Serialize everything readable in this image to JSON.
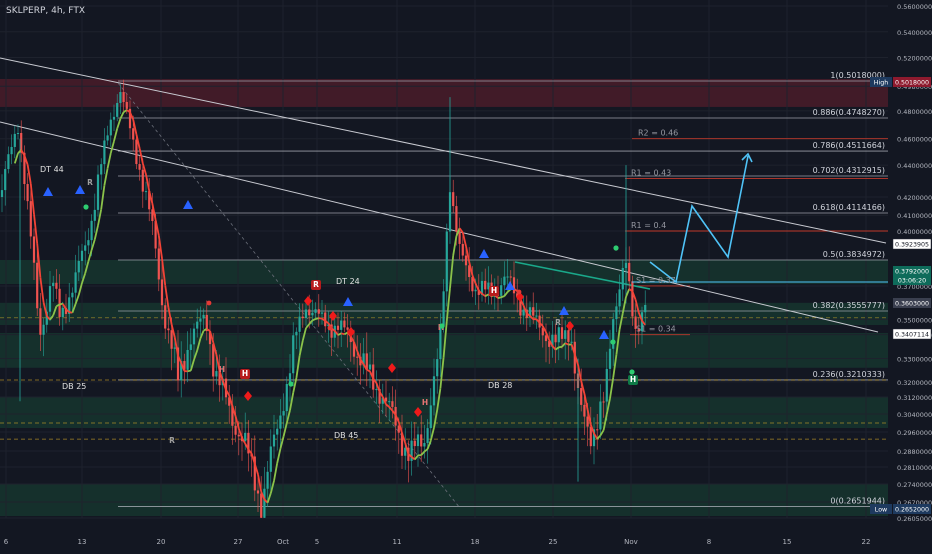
{
  "header": {
    "symbol_label": "SKLPERP, 4h, FTX"
  },
  "chart_data": {
    "type": "candlestick",
    "title": "",
    "symbol": "SKLPERP",
    "timeframe": "4h",
    "exchange": "FTX",
    "ylim": [
      0.2605,
      0.5605
    ],
    "x_ticks": [
      "6",
      "13",
      "20",
      "27",
      "Oct",
      "5",
      "11",
      "18",
      "25",
      "Nov",
      "8",
      "15",
      "22"
    ],
    "y_ticks": [
      "0.5600000",
      "0.5400000",
      "0.5200000",
      "0.4980000",
      "0.4800000",
      "0.4600000",
      "0.4400000",
      "0.4200000",
      "0.4100000",
      "0.4000000",
      "0.3700000",
      "0.3500000",
      "0.3400000",
      "0.3300000",
      "0.3200000",
      "0.3120000",
      "0.3040000",
      "0.2960000",
      "0.2880000",
      "0.2810000",
      "0.2740000",
      "0.2670000",
      "0.2605000"
    ],
    "fib_levels": [
      {
        "label": "1(0.5018000)",
        "value": 0.5018
      },
      {
        "label": "0.886(0.4748270)",
        "value": 0.474827
      },
      {
        "label": "0.786(0.4511664)",
        "value": 0.4511664
      },
      {
        "label": "0.702(0.4312915)",
        "value": 0.4312915
      },
      {
        "label": "0.618(0.4114166)",
        "value": 0.4114166
      },
      {
        "label": "0.5(0.3834972)",
        "value": 0.3834972
      },
      {
        "label": "0.382(0.3555777)",
        "value": 0.3555777
      },
      {
        "label": "0.236(0.3210333)",
        "value": 0.3210333
      },
      {
        "label": "0(0.2651944)",
        "value": 0.2651944
      }
    ],
    "pivot_levels": [
      {
        "label": "R2 = 0.46",
        "value": 0.46
      },
      {
        "label": "R1 = 0.43",
        "value": 0.43
      },
      {
        "label": "R1 = 0.4",
        "value": 0.4
      },
      {
        "label": "S1 = 0.37",
        "value": 0.37
      },
      {
        "label": "S1 = 0.34",
        "value": 0.34
      }
    ],
    "pattern_labels": [
      {
        "label": "DT 44",
        "x": 0.06,
        "y": 0.431
      },
      {
        "label": "DT 24",
        "x": 0.37,
        "y": 0.374
      },
      {
        "label": "DB 25",
        "x": 0.075,
        "y": 0.317
      },
      {
        "label": "DB 45",
        "x": 0.37,
        "y": 0.294
      },
      {
        "label": "DB 28",
        "x": 0.535,
        "y": 0.318
      }
    ],
    "price_badges": [
      {
        "label": "0.5018000",
        "value": 0.5018,
        "color": "#8e1a2e"
      },
      {
        "label": "High",
        "value": 0.5018,
        "color": "#1e3a5f"
      },
      {
        "label": "0.3923905",
        "value": 0.3923905,
        "color": "#ffffff"
      },
      {
        "label": "0.3792000",
        "value": 0.3792,
        "color": "#0e6b5a"
      },
      {
        "label": "03:06:20",
        "value": 0.3792,
        "color": "#0e6b5a"
      },
      {
        "label": "0.3603000",
        "value": 0.3603,
        "color": "#3a3f4f"
      },
      {
        "label": "0.3407114",
        "value": 0.3407114,
        "color": "#ffffff"
      },
      {
        "label": "0.2652000",
        "value": 0.2652,
        "color": "#1e3a5f"
      },
      {
        "label": "Low",
        "value": 0.2652,
        "color": "#1e3a5f"
      }
    ],
    "markers": [
      "R",
      "R",
      "R",
      "H",
      "H",
      "H",
      "H",
      "H",
      "R",
      "H"
    ],
    "projection_path": [
      [
        0.695,
        0.38
      ],
      [
        0.73,
        0.372
      ],
      [
        0.755,
        0.418
      ],
      [
        0.79,
        0.378
      ],
      [
        0.815,
        0.45
      ]
    ],
    "colors": {
      "background": "#131722",
      "up": "#26a69a",
      "down": "#ef5350",
      "ma_up": "#8bc34a",
      "ma_down": "#f44336",
      "projection": "#4fc3f7",
      "fib": "#b2b5be",
      "pivot": "#c0392b"
    }
  }
}
